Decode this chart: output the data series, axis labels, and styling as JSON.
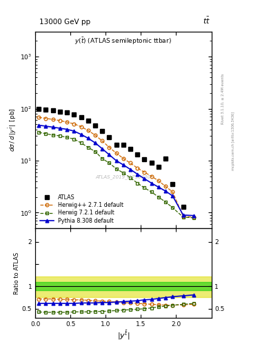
{
  "xdata": [
    0.05,
    0.15,
    0.25,
    0.35,
    0.45,
    0.55,
    0.65,
    0.75,
    0.85,
    0.95,
    1.05,
    1.15,
    1.25,
    1.35,
    1.45,
    1.55,
    1.65,
    1.75,
    1.85,
    1.95,
    2.1,
    2.25
  ],
  "atlas_y": [
    100,
    97,
    92,
    88,
    84,
    78,
    68,
    58,
    47,
    37,
    28,
    20,
    20,
    17,
    13,
    10.5,
    9.0,
    7.5,
    11,
    3.5,
    1.3,
    null
  ],
  "herwig_pp_y": [
    68,
    65,
    62,
    59,
    55,
    51,
    45,
    38,
    31,
    24,
    18,
    14,
    11,
    9.0,
    7.2,
    6.0,
    5.0,
    4.1,
    3.2,
    2.5,
    0.85,
    0.82
  ],
  "herwig72_y": [
    35,
    33,
    31,
    30,
    28,
    26,
    22,
    18,
    15,
    11,
    9.0,
    7.0,
    5.8,
    4.7,
    3.7,
    3.0,
    2.5,
    2.0,
    1.6,
    1.25,
    0.82,
    0.8
  ],
  "pythia_y": [
    48,
    46,
    44,
    42,
    40,
    37,
    32,
    27,
    22,
    17,
    13,
    10,
    8.3,
    6.8,
    5.5,
    4.5,
    3.7,
    3.1,
    2.6,
    2.1,
    0.9,
    0.88
  ],
  "ratio_herwig_pp": [
    0.72,
    0.72,
    0.72,
    0.71,
    0.71,
    0.7,
    0.7,
    0.69,
    0.68,
    0.67,
    0.66,
    0.65,
    0.64,
    0.63,
    0.62,
    0.61,
    0.6,
    0.59,
    0.58,
    0.58,
    0.59,
    0.6
  ],
  "ratio_herwig72": [
    0.43,
    0.42,
    0.42,
    0.42,
    0.42,
    0.43,
    0.43,
    0.43,
    0.44,
    0.44,
    0.45,
    0.46,
    0.47,
    0.48,
    0.49,
    0.5,
    0.52,
    0.54,
    0.56,
    0.58,
    0.6,
    0.62
  ],
  "ratio_pythia": [
    0.62,
    0.62,
    0.62,
    0.62,
    0.62,
    0.62,
    0.63,
    0.63,
    0.63,
    0.64,
    0.64,
    0.65,
    0.66,
    0.67,
    0.68,
    0.7,
    0.71,
    0.73,
    0.75,
    0.77,
    0.79,
    0.81
  ],
  "color_atlas": "#000000",
  "color_herwig_pp": "#cc6600",
  "color_herwig72": "#336600",
  "color_pythia": "#0000cc",
  "band_green_lo": 0.92,
  "band_green_hi": 1.1,
  "band_yellow_lo": 0.76,
  "band_yellow_hi": 1.22,
  "xlim": [
    0,
    2.5
  ],
  "ylim_main": [
    0.5,
    3000
  ],
  "ylim_ratio": [
    0.3,
    2.3
  ]
}
